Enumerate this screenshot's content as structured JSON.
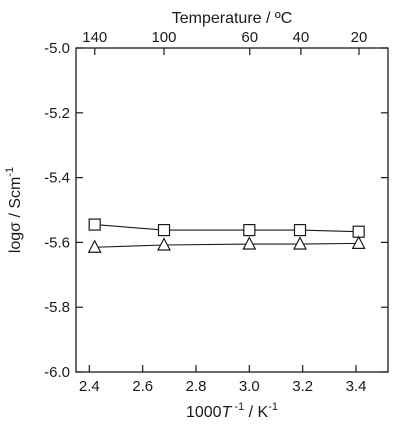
{
  "chart_data": {
    "type": "scatter",
    "top_axis": {
      "label": "Temperature / ºC",
      "tick_labels": [
        "140",
        "100",
        "60",
        "40",
        "20"
      ],
      "tick_values_celsius": [
        140,
        100,
        60,
        40,
        20
      ]
    },
    "ylabel_main": "logσ / Scm",
    "ylabel_sup": "-1",
    "xlabel_main": "1000",
    "xlabel_italic": "T",
    "xlabel_sup1": " -1",
    "xlabel_mid": " / K",
    "xlabel_sup2": "-1",
    "xlim": [
      2.35,
      3.52
    ],
    "ylim": [
      -6.0,
      -5.0
    ],
    "x_ticks": [
      2.4,
      2.6,
      2.8,
      3.0,
      3.2,
      3.4
    ],
    "x_tick_labels": [
      "2.4",
      "2.6",
      "2.8",
      "3.0",
      "3.2",
      "3.4"
    ],
    "y_ticks": [
      -6.0,
      -5.8,
      -5.6,
      -5.4,
      -5.2,
      -5.0
    ],
    "y_tick_labels": [
      "-6.0",
      "-5.8",
      "-5.6",
      "-5.4",
      "-5.2",
      "-5.0"
    ],
    "grid": false,
    "legend": "none",
    "series": [
      {
        "marker": "square",
        "x": [
          2.42,
          2.68,
          3.0,
          3.19,
          3.41
        ],
        "y": [
          -5.545,
          -5.562,
          -5.562,
          -5.562,
          -5.567
        ]
      },
      {
        "marker": "triangle",
        "x": [
          2.42,
          2.68,
          3.0,
          3.19,
          3.41
        ],
        "y": [
          -5.615,
          -5.608,
          -5.605,
          -5.605,
          -5.603
        ]
      }
    ]
  }
}
